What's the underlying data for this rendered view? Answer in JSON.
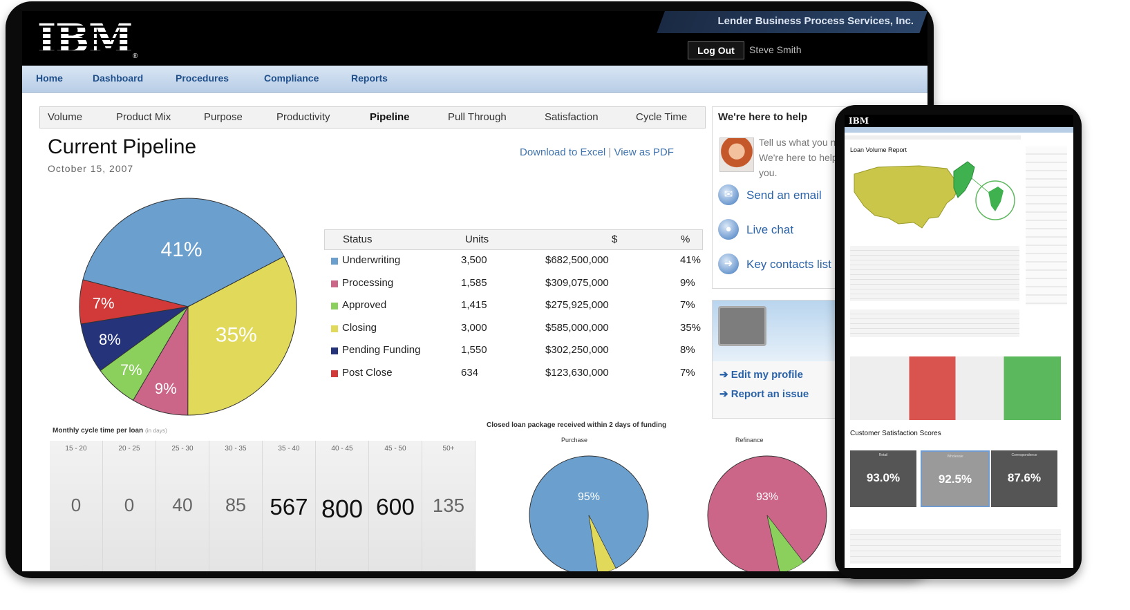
{
  "header": {
    "logo": "IBM",
    "company": "Lender Business Process Services, Inc.",
    "logout_label": "Log Out",
    "user_name": "Steve Smith"
  },
  "main_nav": [
    "Home",
    "Dashboard",
    "Procedures",
    "Compliance",
    "Reports"
  ],
  "sub_tabs": [
    "Volume",
    "Product Mix",
    "Purpose",
    "Productivity",
    "Pipeline",
    "Pull Through",
    "Satisfaction",
    "Cycle Time"
  ],
  "active_sub_tab": "Pipeline",
  "page": {
    "title": "Current Pipeline",
    "date": "October 15, 2007",
    "download_link": "Download to Excel",
    "separator": "|",
    "pdf_link": "View as PDF"
  },
  "chart_data": [
    {
      "type": "pie",
      "categories": [
        "Underwriting",
        "Closing",
        "Processing",
        "Approved",
        "Pending Funding",
        "Post Close"
      ],
      "values": [
        41,
        35,
        9,
        7,
        8,
        7
      ],
      "labels": [
        "41%",
        "35%",
        "9%",
        "7%",
        "8%",
        "7%"
      ],
      "colors": [
        "#6a9fce",
        "#e1d959",
        "#cc6688",
        "#8bcf5c",
        "#24337a",
        "#d23a3a"
      ]
    },
    {
      "type": "pie",
      "title": "Closed loan package received within 2 days of funding",
      "categories": [
        "Purchase"
      ],
      "values": [
        95
      ],
      "labels": [
        "95%"
      ],
      "colors": [
        "#6a9fce",
        "#e1d959"
      ]
    },
    {
      "type": "pie",
      "categories": [
        "Refinance"
      ],
      "values": [
        93
      ],
      "labels": [
        "93%"
      ],
      "colors": [
        "#cc6688",
        "#8bcf5c"
      ]
    }
  ],
  "pipeline_table": {
    "headers": [
      "Status",
      "Units",
      "$",
      "%"
    ],
    "rows": [
      {
        "status": "Underwriting",
        "units": "3,500",
        "amount": "$682,500,000",
        "pct": "41%",
        "color": "#6a9fce"
      },
      {
        "status": "Processing",
        "units": "1,585",
        "amount": "$309,075,000",
        "pct": "9%",
        "color": "#cc6688"
      },
      {
        "status": "Approved",
        "units": "1,415",
        "amount": "$275,925,000",
        "pct": "7%",
        "color": "#8bcf5c"
      },
      {
        "status": "Closing",
        "units": "3,000",
        "amount": "$585,000,000",
        "pct": "35%",
        "color": "#e1d959"
      },
      {
        "status": "Pending Funding",
        "units": "1,550",
        "amount": "$302,250,000",
        "pct": "8%",
        "color": "#24337a"
      },
      {
        "status": "Post Close",
        "units": "634",
        "amount": "$123,630,000",
        "pct": "7%",
        "color": "#d23a3a"
      }
    ]
  },
  "help": {
    "title": "We're here to help",
    "text": "Tell us what you need. We're here to help you.",
    "links": [
      "Send an email",
      "Live chat",
      "Key contacts list"
    ]
  },
  "profile_links": [
    "Edit my profile",
    "Report an issue"
  ],
  "cycle_time": {
    "title": "Monthly cycle time per loan",
    "unit": "(in days)",
    "ranges": [
      "15 - 20",
      "20 - 25",
      "25 - 30",
      "30 - 35",
      "35 - 40",
      "40 - 45",
      "45 - 50",
      "50+"
    ],
    "values": [
      "0",
      "0",
      "40",
      "85",
      "567",
      "800",
      "600",
      "135"
    ]
  },
  "closed_loan": {
    "title": "Closed loan package received within 2 days of funding",
    "purchase_label": "Purchase",
    "refinance_label": "Refinance"
  },
  "tablet": {
    "logo": "IBM",
    "report_title": "Loan Volume Report",
    "satisfaction_title": "Customer Satisfaction Scores",
    "scores": [
      {
        "label": "Retail",
        "value": "93.0%"
      },
      {
        "label": "Wholesale",
        "value": "92.5%"
      },
      {
        "label": "Correspondence",
        "value": "87.6%"
      }
    ]
  }
}
